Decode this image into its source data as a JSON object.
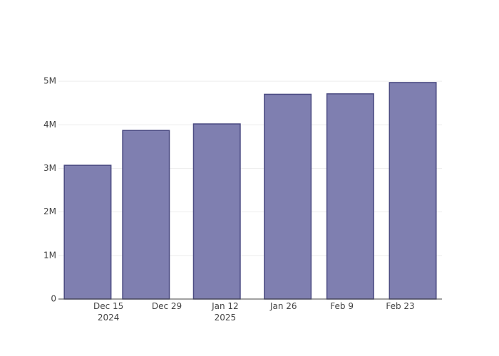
{
  "chart_data": {
    "type": "bar",
    "x": [
      "2024-12-10",
      "2024-12-24",
      "2025-01-10",
      "2025-01-27",
      "2025-02-11",
      "2025-02-26"
    ],
    "values": [
      3070000,
      3870000,
      4020000,
      4700000,
      4710000,
      4970000
    ],
    "color": "#7f7fb0",
    "edge_color": "#4b4b82",
    "xlim": [
      "2024-12-03",
      "2025-03-05"
    ],
    "xticks": [
      {
        "value": "2024-12-15",
        "label": "Dec 15\n2024"
      },
      {
        "value": "2024-12-29",
        "label": "Dec 29"
      },
      {
        "value": "2025-01-12",
        "label": "Jan 12\n2025"
      },
      {
        "value": "2025-01-26",
        "label": "Jan 26"
      },
      {
        "value": "2025-02-09",
        "label": "Feb 9"
      },
      {
        "value": "2025-02-23",
        "label": "Feb 23"
      }
    ],
    "ylim": [
      0,
      5230000
    ],
    "yticks": [
      0,
      {
        "value": 1000000,
        "label": "1M"
      },
      {
        "value": 2000000,
        "label": "2M"
      },
      {
        "value": 3000000,
        "label": "3M"
      },
      {
        "value": 4000000,
        "label": "4M"
      },
      {
        "value": 5000000,
        "label": "5M"
      }
    ],
    "grid": true
  }
}
